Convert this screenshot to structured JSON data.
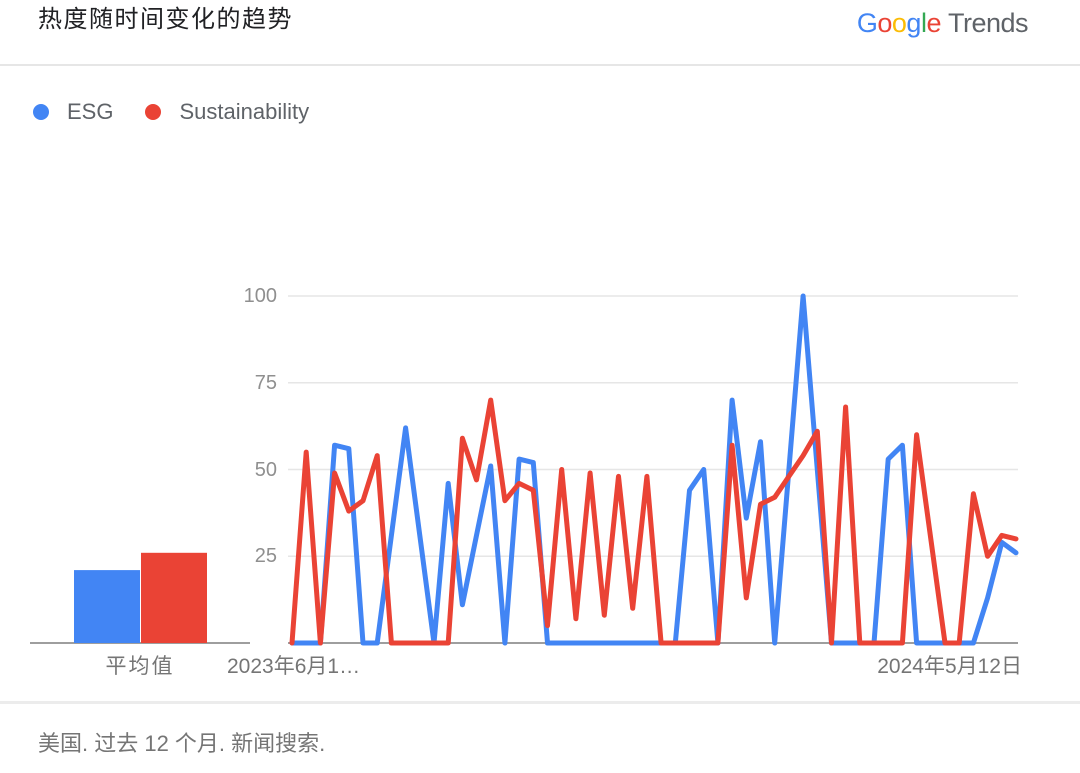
{
  "header": {
    "title": "热度随时间变化的趋势"
  },
  "logo": {
    "google_letters": [
      {
        "ch": "G",
        "color": "#4285F4"
      },
      {
        "ch": "o",
        "color": "#EA4335"
      },
      {
        "ch": "o",
        "color": "#FBBC05"
      },
      {
        "ch": "g",
        "color": "#4285F4"
      },
      {
        "ch": "l",
        "color": "#34A853"
      },
      {
        "ch": "e",
        "color": "#EA4335"
      }
    ],
    "trends": "Trends",
    "trends_color": "#5f6368"
  },
  "legend": {
    "items": [
      {
        "label": "ESG",
        "color": "#4285f4"
      },
      {
        "label": "Sustainability",
        "color": "#ea4335"
      }
    ]
  },
  "footer": {
    "text": "美国. 过去 12 个月. 新闻搜索."
  },
  "chart_data": [
    {
      "type": "bar",
      "title": "平均值",
      "categories": [
        "ESG",
        "Sustainability"
      ],
      "values": [
        21,
        26
      ],
      "colors": [
        "#4285f4",
        "#ea4335"
      ],
      "ylim": [
        0,
        100
      ]
    },
    {
      "type": "line",
      "title": "热度随时间变化的趋势",
      "x_start_label": "2023年6月1…",
      "x_end_label": "2024年5月12日",
      "yticks": [
        100,
        75,
        50,
        25
      ],
      "ylim": [
        0,
        100
      ],
      "grid": true,
      "legend_position": "top",
      "points_count": 52,
      "series": [
        {
          "name": "ESG",
          "color": "#4285f4",
          "values": [
            0,
            0,
            0,
            57,
            56,
            0,
            0,
            31,
            62,
            31,
            0,
            46,
            11,
            31,
            51,
            0,
            53,
            52,
            0,
            0,
            0,
            0,
            0,
            0,
            0,
            0,
            0,
            0,
            44,
            50,
            0,
            70,
            36,
            58,
            0,
            50,
            100,
            50,
            0,
            0,
            0,
            0,
            53,
            57,
            0,
            0,
            0,
            0,
            0,
            13,
            29,
            26
          ]
        },
        {
          "name": "Sustainability",
          "color": "#ea4335",
          "values": [
            0,
            55,
            0,
            49,
            38,
            41,
            54,
            0,
            0,
            0,
            0,
            0,
            59,
            47,
            70,
            41,
            46,
            44,
            5,
            50,
            7,
            49,
            8,
            48,
            10,
            48,
            0,
            0,
            0,
            0,
            0,
            57,
            13,
            40,
            42,
            48,
            54,
            61,
            0,
            68,
            0,
            0,
            0,
            0,
            60,
            30,
            0,
            0,
            43,
            25,
            31,
            30
          ]
        }
      ]
    }
  ]
}
